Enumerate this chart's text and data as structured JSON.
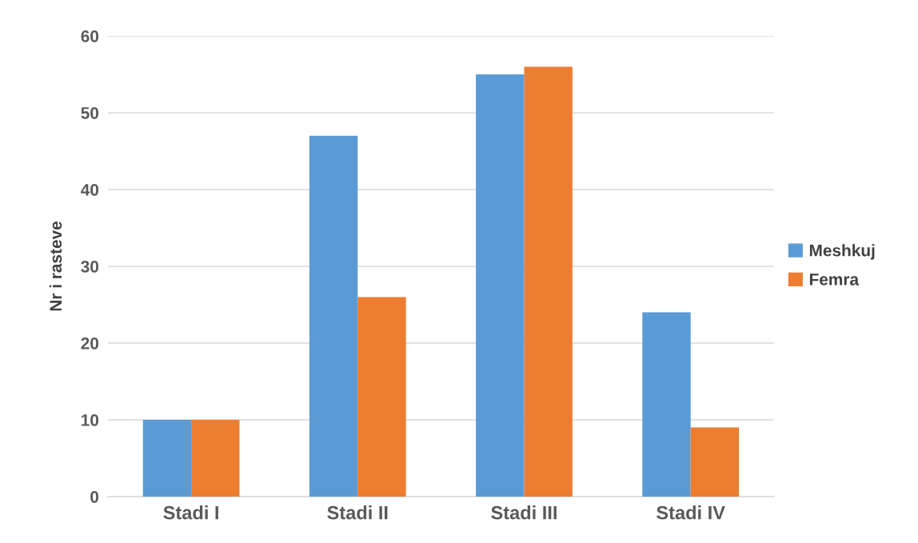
{
  "chart_data": {
    "type": "bar",
    "ylabel": "Nr i rasteve",
    "categories": [
      "Stadi I",
      "Stadi II",
      "Stadi III",
      "Stadi IV"
    ],
    "series": [
      {
        "name": "Meshkuj",
        "color": "#5b9bd5",
        "values": [
          10,
          47,
          55,
          24
        ]
      },
      {
        "name": "Femra",
        "color": "#ed7d31",
        "values": [
          10,
          26,
          56,
          9
        ]
      }
    ],
    "ylim": [
      0,
      60
    ],
    "yticks": [
      0,
      10,
      20,
      30,
      40,
      50,
      60
    ],
    "grid": "y",
    "legend": "right"
  }
}
